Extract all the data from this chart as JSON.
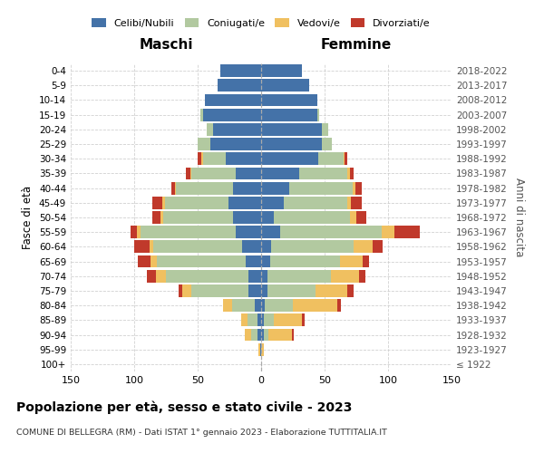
{
  "age_groups": [
    "100+",
    "95-99",
    "90-94",
    "85-89",
    "80-84",
    "75-79",
    "70-74",
    "65-69",
    "60-64",
    "55-59",
    "50-54",
    "45-49",
    "40-44",
    "35-39",
    "30-34",
    "25-29",
    "20-24",
    "15-19",
    "10-14",
    "5-9",
    "0-4"
  ],
  "birth_years": [
    "≤ 1922",
    "1923-1927",
    "1928-1932",
    "1933-1937",
    "1938-1942",
    "1943-1947",
    "1948-1952",
    "1953-1957",
    "1958-1962",
    "1963-1967",
    "1968-1972",
    "1973-1977",
    "1978-1982",
    "1983-1987",
    "1988-1992",
    "1993-1997",
    "1998-2002",
    "2003-2007",
    "2008-2012",
    "2013-2017",
    "2018-2022"
  ],
  "maschi": {
    "celibi": [
      0,
      1,
      3,
      3,
      5,
      10,
      10,
      12,
      15,
      20,
      22,
      26,
      22,
      20,
      28,
      40,
      38,
      46,
      44,
      34,
      32
    ],
    "coniugati": [
      0,
      0,
      5,
      8,
      18,
      45,
      65,
      70,
      70,
      75,
      55,
      50,
      45,
      35,
      18,
      10,
      5,
      2,
      0,
      0,
      0
    ],
    "vedovi": [
      0,
      1,
      5,
      5,
      7,
      7,
      8,
      5,
      3,
      3,
      2,
      2,
      1,
      1,
      1,
      0,
      0,
      0,
      0,
      0,
      0
    ],
    "divorziati": [
      0,
      0,
      0,
      0,
      0,
      3,
      7,
      10,
      12,
      5,
      7,
      8,
      3,
      3,
      3,
      0,
      0,
      0,
      0,
      0,
      0
    ]
  },
  "femmine": {
    "nubili": [
      0,
      0,
      2,
      2,
      3,
      5,
      5,
      7,
      8,
      15,
      10,
      18,
      22,
      30,
      45,
      48,
      48,
      44,
      44,
      38,
      32
    ],
    "coniugate": [
      0,
      0,
      4,
      8,
      22,
      38,
      50,
      55,
      65,
      80,
      60,
      50,
      50,
      38,
      20,
      8,
      5,
      2,
      0,
      0,
      0
    ],
    "vedove": [
      0,
      2,
      18,
      22,
      35,
      25,
      22,
      18,
      15,
      10,
      5,
      3,
      2,
      2,
      1,
      0,
      0,
      0,
      0,
      0,
      0
    ],
    "divorziate": [
      0,
      0,
      2,
      2,
      3,
      5,
      5,
      5,
      8,
      20,
      8,
      8,
      5,
      3,
      2,
      0,
      0,
      0,
      0,
      0,
      0
    ]
  },
  "colors": {
    "celibi": "#4472a8",
    "coniugati": "#b2c9a0",
    "vedovi": "#f0c060",
    "divorziati": "#c0392b"
  },
  "title": "Popolazione per età, sesso e stato civile - 2023",
  "subtitle": "COMUNE DI BELLEGRA (RM) - Dati ISTAT 1° gennaio 2023 - Elaborazione TUTTITALIA.IT",
  "xlabel_left": "Maschi",
  "xlabel_right": "Femmine",
  "ylabel_left": "Fasce di età",
  "ylabel_right": "Anni di nascita",
  "xlim": 150,
  "bg_color": "#ffffff",
  "grid_color": "#cccccc"
}
